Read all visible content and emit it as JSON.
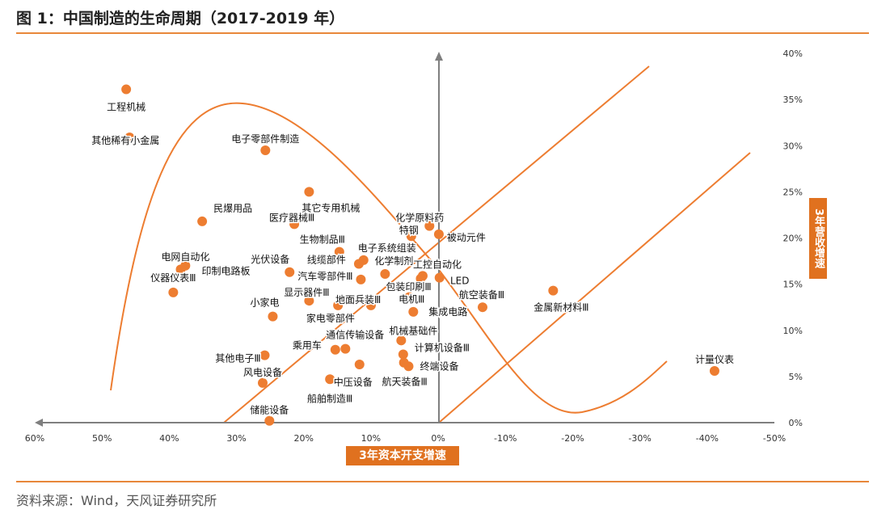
{
  "title": "图 1：中国制造的生命周期（2017-2019 年）",
  "source": "资料来源：Wind，天风证券研究所",
  "chart_data": {
    "type": "scatter",
    "xlabel": "3年资本开支增速",
    "ylabel": "3年营收增速",
    "xlim": [
      60,
      -50
    ],
    "ylim": [
      0,
      40
    ],
    "x_ticks": [
      "60%",
      "50%",
      "40%",
      "30%",
      "20%",
      "10%",
      "0%",
      "-10%",
      "-20%",
      "-30%",
      "-40%",
      "-50%"
    ],
    "y_ticks": [
      "0%",
      "5%",
      "10%",
      "15%",
      "20%",
      "25%",
      "30%",
      "35%",
      "40%"
    ],
    "color": "#ED7D31",
    "points": [
      {
        "label": "工程机械",
        "x": 46.4,
        "y": 36.1
      },
      {
        "label": "其他稀有小金属",
        "x": 45.9,
        "y": 30.9
      },
      {
        "label": "电子零部件制造",
        "x": 25.7,
        "y": 29.5
      },
      {
        "label": "其它专用机械",
        "x": 19.2,
        "y": 25.0
      },
      {
        "label": "民爆用品",
        "x": 35.1,
        "y": 21.8
      },
      {
        "label": "医疗器械Ⅲ",
        "x": 21.4,
        "y": 21.5
      },
      {
        "label": "生物制品Ⅲ",
        "x": 14.7,
        "y": 18.5
      },
      {
        "label": "电子系统组装",
        "x": 11.1,
        "y": 17.6
      },
      {
        "label": "线缆部件",
        "x": 11.8,
        "y": 17.2
      },
      {
        "label": "化学制剂",
        "x": 7.9,
        "y": 16.1
      },
      {
        "label": "化学原料药",
        "x": 1.3,
        "y": 21.3
      },
      {
        "label": "特钢",
        "x": 4.0,
        "y": 20.2
      },
      {
        "label": "被动元件",
        "x": -0.1,
        "y": 20.4
      },
      {
        "label": "工控自动化",
        "x": 2.3,
        "y": 15.9
      },
      {
        "label": "LED",
        "x": -0.2,
        "y": 15.7
      },
      {
        "label": "包装印刷Ⅲ",
        "x": 2.6,
        "y": 15.6
      },
      {
        "label": "光伏设备",
        "x": 22.1,
        "y": 16.3
      },
      {
        "label": "汽车零部件Ⅲ",
        "x": 11.5,
        "y": 15.5
      },
      {
        "label": "电网自动化",
        "x": 37.6,
        "y": 17.0
      },
      {
        "label": "印制电路板",
        "x": 38.3,
        "y": 16.6
      },
      {
        "label": "仪器仪表Ⅲ",
        "x": 39.4,
        "y": 14.1
      },
      {
        "label": "显示器件Ⅲ",
        "x": 19.2,
        "y": 13.2
      },
      {
        "label": "小家电",
        "x": 24.6,
        "y": 11.5
      },
      {
        "label": "地面兵装Ⅲ",
        "x": 14.9,
        "y": 12.7
      },
      {
        "label": "家电零部件",
        "x": 10.0,
        "y": 12.7
      },
      {
        "label": "电机Ⅲ",
        "x": 4.3,
        "y": 13.6
      },
      {
        "label": "集成电路",
        "x": 3.7,
        "y": 12.0
      },
      {
        "label": "航空装备Ⅲ",
        "x": -6.6,
        "y": 12.5
      },
      {
        "label": "金属新材料Ⅲ",
        "x": -17.1,
        "y": 14.3
      },
      {
        "label": "计量仪表",
        "x": -41.1,
        "y": 5.6
      },
      {
        "label": "机械基础件",
        "x": 5.5,
        "y": 8.9
      },
      {
        "label": "计算机设备Ⅲ",
        "x": 5.2,
        "y": 7.4
      },
      {
        "label": "终端设备",
        "x": 4.4,
        "y": 6.1
      },
      {
        "label": "航天装备Ⅲ",
        "x": 5.1,
        "y": 6.5
      },
      {
        "label": "通信传输设备",
        "x": 13.8,
        "y": 8.0
      },
      {
        "label": "乘用车",
        "x": 15.3,
        "y": 7.9
      },
      {
        "label": "其他电子Ⅲ",
        "x": 25.8,
        "y": 7.3
      },
      {
        "label": "风电设备",
        "x": 26.1,
        "y": 4.3
      },
      {
        "label": "中压设备",
        "x": 11.7,
        "y": 6.3
      },
      {
        "label": "船舶制造Ⅲ",
        "x": 16.1,
        "y": 4.7
      },
      {
        "label": "储能设备",
        "x": 25.1,
        "y": 0.2
      }
    ]
  }
}
